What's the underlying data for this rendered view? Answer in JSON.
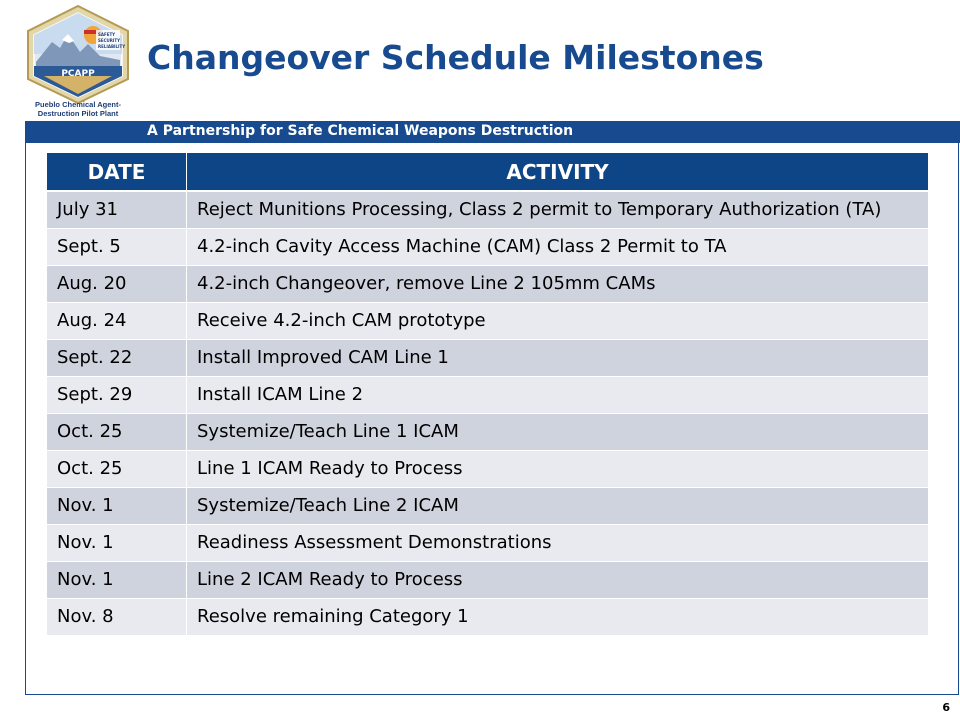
{
  "logo": {
    "badge_text": "PCAPP",
    "tagline_lines": [
      "SAFETY",
      "SECURITY",
      "RELIABILITY"
    ],
    "caption_line1": "Pueblo Chemical Agent-",
    "caption_line2": "Destruction Pilot Plant"
  },
  "title": "Changeover Schedule Milestones",
  "banner": "A Partnership for Safe Chemical Weapons Destruction",
  "table": {
    "headers": [
      "DATE",
      "ACTIVITY"
    ],
    "rows": [
      {
        "date": "July 31",
        "activity": "Reject Munitions Processing, Class 2 permit to Temporary Authorization (TA)"
      },
      {
        "date": "Sept. 5",
        "activity": "4.2-inch Cavity Access Machine (CAM) Class 2 Permit to TA"
      },
      {
        "date": "Aug. 20",
        "activity": "4.2-inch Changeover, remove Line 2 105mm CAMs"
      },
      {
        "date": "Aug. 24",
        "activity": "Receive 4.2-inch CAM prototype"
      },
      {
        "date": "Sept. 22",
        "activity": "Install Improved CAM Line 1"
      },
      {
        "date": "Sept. 29",
        "activity": "Install ICAM Line 2"
      },
      {
        "date": "Oct. 25",
        "activity": "Systemize/Teach Line 1 ICAM"
      },
      {
        "date": "Oct. 25",
        "activity": "Line 1 ICAM Ready to Process"
      },
      {
        "date": "Nov. 1",
        "activity": "Systemize/Teach Line 2 ICAM"
      },
      {
        "date": "Nov. 1",
        "activity": "Readiness Assessment Demonstrations"
      },
      {
        "date": "Nov. 1",
        "activity": "Line 2 ICAM Ready to Process"
      },
      {
        "date": "Nov. 8",
        "activity": "Resolve remaining Category 1"
      }
    ]
  },
  "page_number": "6",
  "colors": {
    "brand_blue": "#174a8f",
    "header_blue": "#0e4586",
    "row_dark": "#cfd3de",
    "row_light": "#e9eaef"
  }
}
